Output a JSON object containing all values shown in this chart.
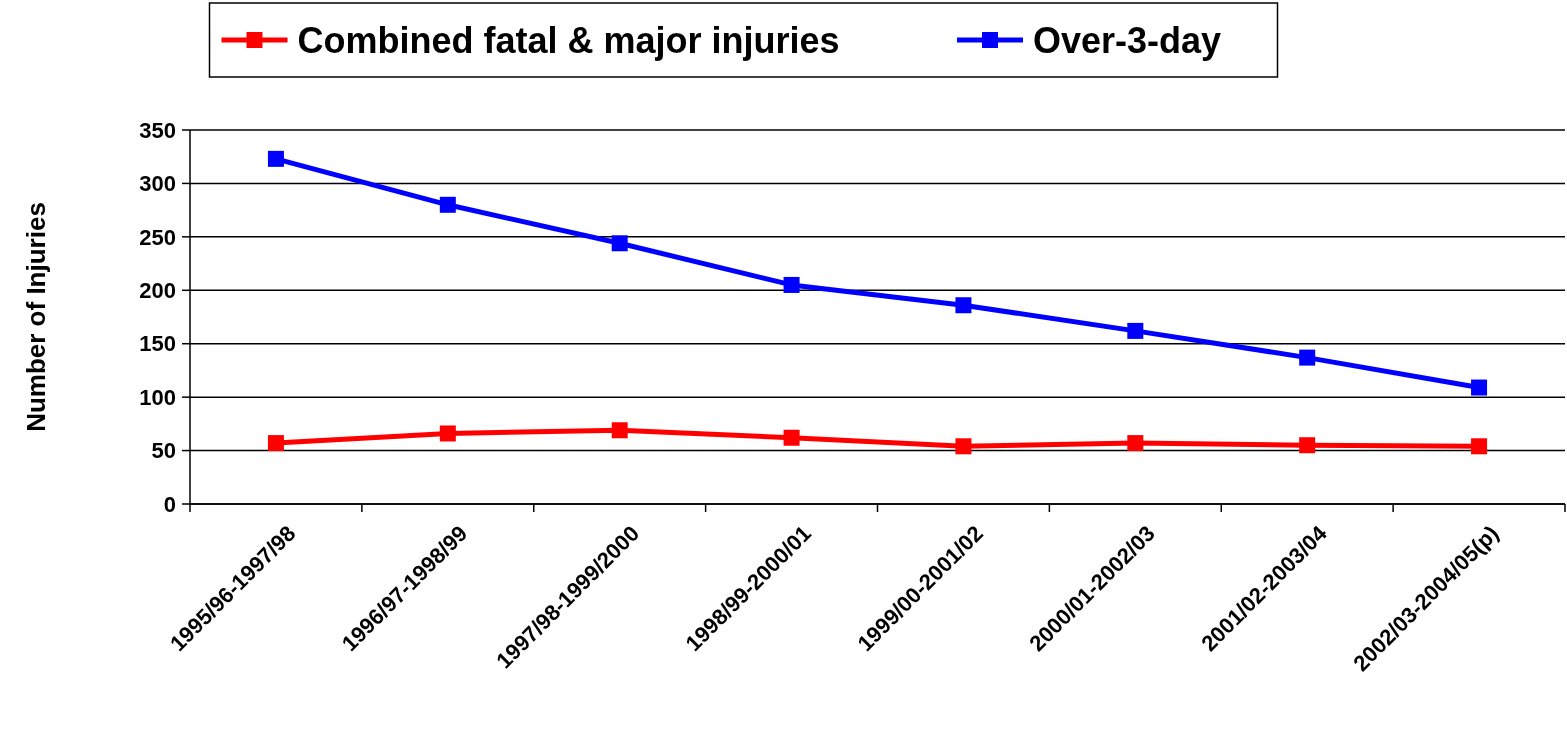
{
  "chart_data": {
    "type": "line",
    "ylabel": "Number of Injuries",
    "categories": [
      "1995/96-1997/98",
      "1996/97-1998/99",
      "1997/98-1999/2000",
      "1998/99-2000/01",
      "1999/00-2001/02",
      "2000/01-2002/03",
      "2001/02-2003/04",
      "2002/03-2004/05(p)"
    ],
    "series": [
      {
        "name": "Combined fatal & major injuries",
        "color": "#ff0000",
        "values": [
          57,
          66,
          69,
          62,
          54,
          57,
          55,
          54
        ]
      },
      {
        "name": "Over-3-day",
        "color": "#0000ff",
        "values": [
          323,
          280,
          244,
          205,
          186,
          162,
          137,
          109
        ]
      }
    ],
    "ylim": [
      0,
      350
    ],
    "yticks": [
      0,
      50,
      100,
      150,
      200,
      250,
      300,
      350
    ],
    "grid": "y",
    "legend": "top",
    "marker": "square",
    "line_style": "solid"
  }
}
